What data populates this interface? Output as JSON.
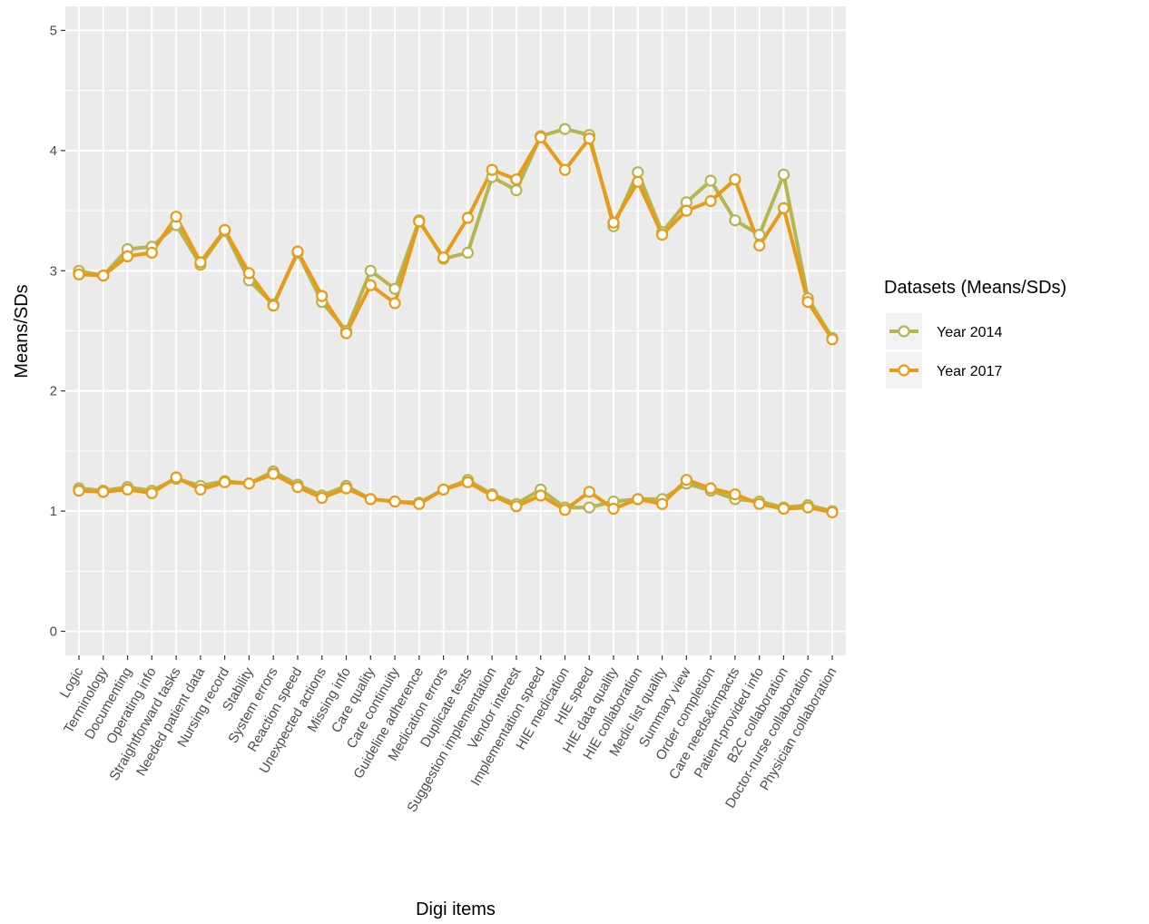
{
  "chart_data": {
    "type": "line",
    "xlabel": "Digi items",
    "ylabel": "Means/SDs",
    "ylim": [
      -0.2,
      5.2
    ],
    "yticks": [
      0,
      1,
      2,
      3,
      4,
      5
    ],
    "grid": true,
    "legend": {
      "title": "Datasets (Means/SDs)",
      "placement": "right"
    },
    "categories": [
      "Logic",
      "Terminology",
      "Documenting",
      "Operating info",
      "Straightforward tasks",
      "Needed patient data",
      "Nursing record",
      "Stability",
      "System errors",
      "Reaction speed",
      "Unexpected actions",
      "Missing info",
      "Care quality",
      "Care continuity",
      "Guideline adherence",
      "Medication errors",
      "Duplicate tests",
      "Suggestion implementation",
      "Vendor interest",
      "Implementation speed",
      "HIE medication",
      "HIE speed",
      "HIE data quality",
      "HIE collaboration",
      "Medic list quality",
      "Summary view",
      "Order completion",
      "Care needs&impacts",
      "Patient-provided info",
      "B2C collaboration",
      "Doctor-nurse collaboration",
      "Physician collaboration"
    ],
    "series": [
      {
        "name": "Year 2014",
        "color": "#b5b552",
        "means": [
          3.0,
          2.96,
          3.18,
          3.2,
          3.38,
          3.05,
          3.33,
          2.92,
          2.72,
          3.15,
          2.74,
          2.5,
          3.0,
          2.85,
          3.42,
          3.1,
          3.15,
          3.78,
          3.67,
          4.12,
          4.18,
          4.13,
          3.37,
          3.82,
          3.32,
          3.57,
          3.75,
          3.42,
          3.3,
          3.8,
          2.77,
          2.44
        ],
        "sds": [
          1.19,
          1.17,
          1.2,
          1.17,
          1.27,
          1.21,
          1.25,
          1.23,
          1.33,
          1.22,
          1.13,
          1.21,
          1.1,
          1.08,
          1.07,
          1.18,
          1.26,
          1.14,
          1.06,
          1.18,
          1.03,
          1.03,
          1.08,
          1.1,
          1.1,
          1.23,
          1.17,
          1.1,
          1.08,
          1.03,
          1.05,
          1.0
        ]
      },
      {
        "name": "Year 2017",
        "color": "#e89b17",
        "means": [
          2.97,
          2.96,
          3.12,
          3.15,
          3.45,
          3.07,
          3.34,
          2.98,
          2.71,
          3.16,
          2.79,
          2.48,
          2.88,
          2.73,
          3.41,
          3.11,
          3.44,
          3.84,
          3.76,
          4.11,
          3.84,
          4.1,
          3.4,
          3.74,
          3.3,
          3.5,
          3.58,
          3.76,
          3.21,
          3.52,
          2.74,
          2.43
        ],
        "sds": [
          1.17,
          1.16,
          1.18,
          1.15,
          1.28,
          1.18,
          1.24,
          1.23,
          1.31,
          1.2,
          1.11,
          1.19,
          1.1,
          1.08,
          1.06,
          1.18,
          1.24,
          1.13,
          1.04,
          1.13,
          1.01,
          1.16,
          1.02,
          1.1,
          1.06,
          1.26,
          1.19,
          1.14,
          1.06,
          1.02,
          1.03,
          0.99
        ]
      }
    ]
  }
}
